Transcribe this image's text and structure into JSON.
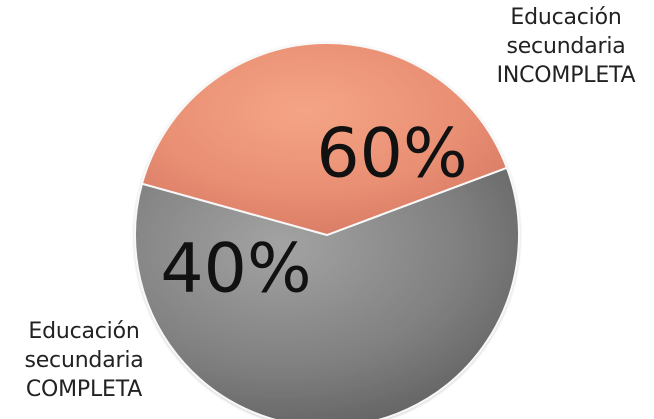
{
  "chart_data": {
    "type": "pie",
    "title": "",
    "slices": [
      {
        "label_lines": [
          "Educación",
          "secundaria",
          "INCOMPLETA"
        ],
        "value": 60,
        "value_label": "60%",
        "color": "#777777"
      },
      {
        "label_lines": [
          "Educación",
          "secundaria",
          "COMPLETA"
        ],
        "value": 40,
        "value_label": "40%",
        "color": "#e8886b"
      }
    ],
    "legend": "none"
  }
}
